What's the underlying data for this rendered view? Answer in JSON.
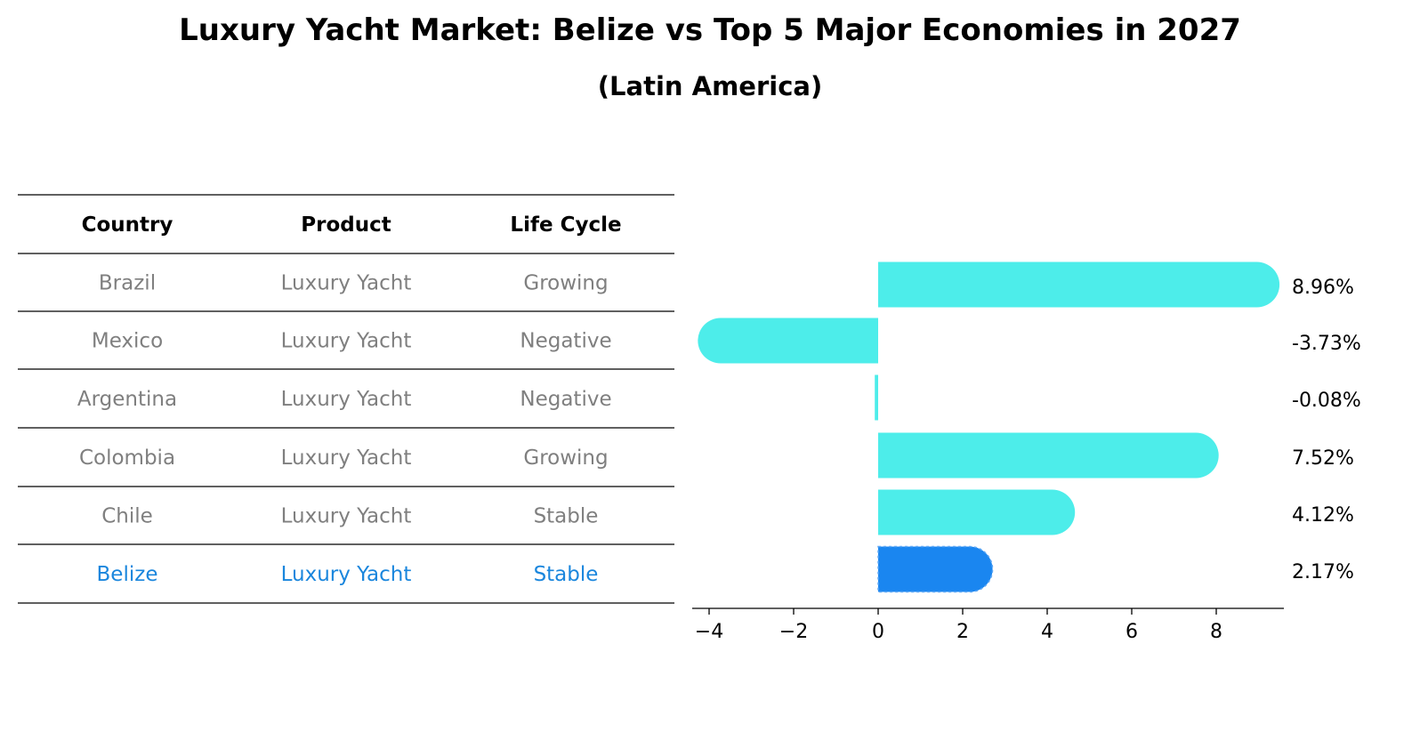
{
  "title": "Luxury Yacht Market: Belize vs Top 5 Major Economies in 2027",
  "subtitle": "(Latin America)",
  "colors": {
    "bar": "#4DEDEA",
    "highlight_bar": "#1A86F0",
    "table_text": "#7F7F7F",
    "table_highlight_text": "#1A86DD",
    "rule": "#000000"
  },
  "table": {
    "headers": [
      "Country",
      "Product",
      "Life Cycle"
    ],
    "rows": [
      [
        "Brazil",
        "Luxury Yacht",
        "Growing"
      ],
      [
        "Mexico",
        "Luxury Yacht",
        "Negative"
      ],
      [
        "Argentina",
        "Luxury Yacht",
        "Negative"
      ],
      [
        "Colombia",
        "Luxury Yacht",
        "Growing"
      ],
      [
        "Chile",
        "Luxury Yacht",
        "Stable"
      ],
      [
        "Belize",
        "Luxury Yacht",
        "Stable"
      ]
    ],
    "highlight_row": 5
  },
  "chart_data": {
    "type": "bar",
    "orientation": "horizontal",
    "categories": [
      "Brazil",
      "Mexico",
      "Argentina",
      "Colombia",
      "Chile",
      "Belize"
    ],
    "values": [
      8.96,
      -3.73,
      -0.08,
      7.52,
      4.12,
      2.17
    ],
    "value_labels": [
      "8.96%",
      "-3.73%",
      "-0.08%",
      "7.52%",
      "4.12%",
      "2.17%"
    ],
    "highlight_index": 5,
    "xlim": [
      -4.4,
      9.6
    ],
    "xticks": [
      -4,
      -2,
      0,
      2,
      4,
      6,
      8
    ],
    "xtick_labels": [
      "−4",
      "−2",
      "0",
      "2",
      "4",
      "6",
      "8"
    ],
    "grid": false,
    "legend": "none"
  }
}
